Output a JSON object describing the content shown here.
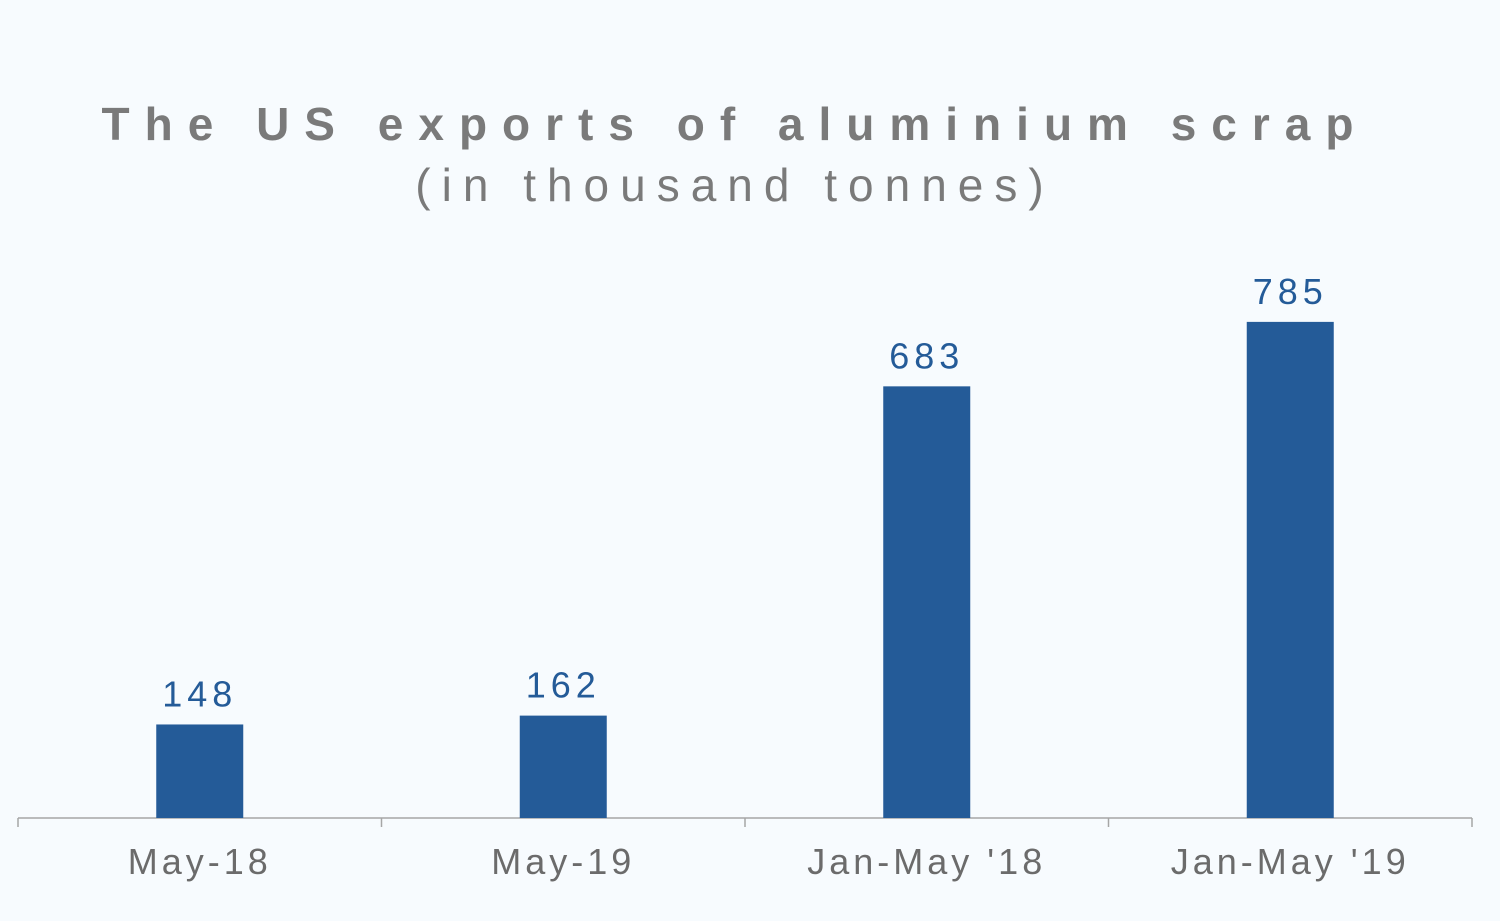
{
  "chart_data": {
    "type": "bar",
    "title": "The US exports of aluminium scrap",
    "subtitle": "(in thousand tonnes)",
    "categories": [
      "May-18",
      "May-19",
      "Jan-May '18",
      "Jan-May '19"
    ],
    "values": [
      148,
      162,
      683,
      785
    ],
    "data_labels": [
      "148",
      "162",
      "683",
      "785"
    ],
    "xlabel": "",
    "ylabel": "",
    "ylim": [
      0,
      1000
    ],
    "grid": false,
    "legend": "none",
    "colors": {
      "bar": "#245b98",
      "data_label": "#245b98",
      "axis": "#a6a6a6",
      "text": "#7a7a7a",
      "background": "#f7fbfe"
    }
  }
}
